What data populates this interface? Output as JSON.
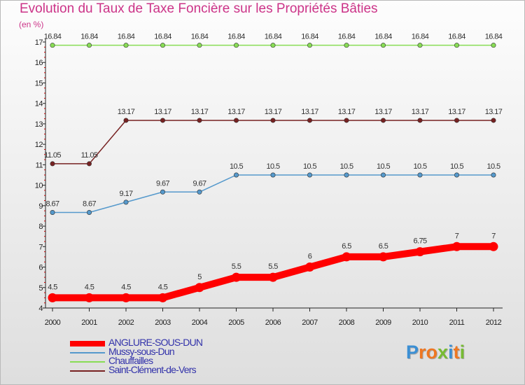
{
  "title": "Evolution du Taux de Taxe Foncière sur les Propriétés Bâties",
  "unit_label": "(en %)",
  "logo": {
    "letters": [
      "P",
      "r",
      "o",
      "x",
      "i",
      "t",
      "i"
    ],
    "colors": [
      "#3b8fd4",
      "#ee7722",
      "#ee7722",
      "#77bb33",
      "#3b8fd4",
      "#ee7722",
      "#77bb33"
    ]
  },
  "chart_data": {
    "type": "line",
    "title": "Evolution du Taux de Taxe Foncière sur les Propriétés Bâties",
    "ylabel": "(en %)",
    "xlabel": "",
    "ylim": [
      4,
      17
    ],
    "yticks": [
      4,
      5,
      6,
      7,
      8,
      9,
      10,
      11,
      12,
      13,
      14,
      15,
      16,
      17
    ],
    "x": [
      "2000",
      "2001",
      "2002",
      "2003",
      "2004",
      "2005",
      "2006",
      "2007",
      "2008",
      "2009",
      "2010",
      "2011",
      "2012"
    ],
    "legend_position": "bottom-left",
    "series": [
      {
        "name": "ANGLURE-SOUS-DUN",
        "color": "#ff0000",
        "highlight": true,
        "values": [
          4.5,
          4.5,
          4.5,
          4.5,
          5,
          5.5,
          5.5,
          6,
          6.5,
          6.5,
          6.75,
          7,
          7
        ],
        "labels": [
          "4.5",
          "4.5",
          "4.5",
          "4.5",
          "5",
          "5.5",
          "5.5",
          "6",
          "6.5",
          "6.5",
          "6.75",
          "7",
          "7"
        ]
      },
      {
        "name": "Mussy-sous-Dun",
        "color": "#5599cc",
        "highlight": false,
        "values": [
          8.67,
          8.67,
          9.17,
          9.67,
          9.67,
          10.5,
          10.5,
          10.5,
          10.5,
          10.5,
          10.5,
          10.5,
          10.5
        ],
        "labels": [
          "8.67",
          "8.67",
          "9.17",
          "9.67",
          "9.67",
          "10.5",
          "10.5",
          "10.5",
          "10.5",
          "10.5",
          "10.5",
          "10.5",
          "10.5"
        ]
      },
      {
        "name": "Chauffailles",
        "color": "#88dd55",
        "highlight": false,
        "values": [
          16.84,
          16.84,
          16.84,
          16.84,
          16.84,
          16.84,
          16.84,
          16.84,
          16.84,
          16.84,
          16.84,
          16.84,
          16.84
        ],
        "labels": [
          "16.84",
          "16.84",
          "16.84",
          "16.84",
          "16.84",
          "16.84",
          "16.84",
          "16.84",
          "16.84",
          "16.84",
          "16.84",
          "16.84",
          "16.84"
        ]
      },
      {
        "name": "Saint-Clément-de-Vers",
        "color": "#772222",
        "highlight": false,
        "values": [
          11.05,
          11.05,
          13.17,
          13.17,
          13.17,
          13.17,
          13.17,
          13.17,
          13.17,
          13.17,
          13.17,
          13.17,
          13.17
        ],
        "labels": [
          "11.05",
          "11.05",
          "13.17",
          "13.17",
          "13.17",
          "13.17",
          "13.17",
          "13.17",
          "13.17",
          "13.17",
          "13.17",
          "13.17",
          "13.17"
        ]
      }
    ]
  }
}
